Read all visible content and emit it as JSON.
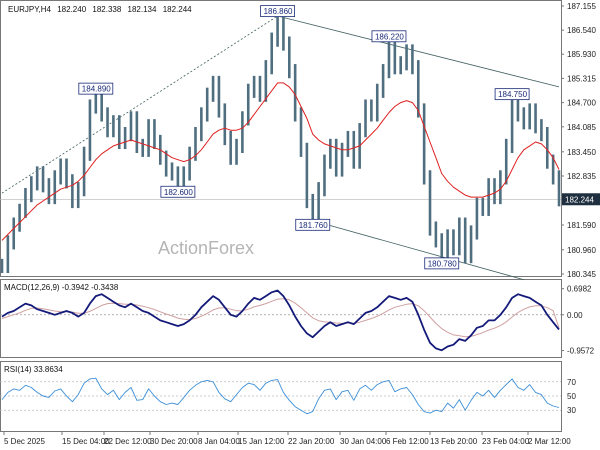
{
  "chart_data": {
    "type": "line",
    "header": {
      "symbol": "EURJPY,H4",
      "open": "182.240",
      "high": "182.338",
      "low": "182.134",
      "close": "182.244"
    },
    "watermark": "ActionForex",
    "x_labels": [
      "5 Dec 2025",
      "15 Dec 04:00",
      "22 Dec 12:00",
      "30 Dec 20:00",
      "8 Jan 04:00",
      "15 Jan 12:00",
      "22 Jan 20:00",
      "30 Jan 04:00",
      "6 Feb 12:00",
      "13 Feb 20:00",
      "23 Feb 04:00",
      "2 Mar 12:00"
    ],
    "price_panel": {
      "y_ticks": [
        "187.155",
        "186.540",
        "185.930",
        "185.315",
        "184.700",
        "184.085",
        "183.450",
        "182.835",
        "181.590",
        "180.960",
        "180.345"
      ],
      "last_price": "182.244",
      "ylim": [
        180.345,
        187.155
      ],
      "close_series": [
        180.55,
        181.15,
        181.6,
        181.95,
        182.35,
        182.65,
        182.9,
        182.6,
        182.3,
        182.8,
        183.1,
        182.7,
        182.2,
        182.5,
        183.4,
        184.6,
        184.89,
        184.4,
        184.0,
        184.2,
        183.7,
        183.9,
        184.3,
        183.6,
        183.5,
        184.1,
        183.7,
        183.3,
        183.0,
        182.9,
        182.6,
        182.9,
        183.4,
        183.9,
        184.4,
        184.9,
        185.2,
        184.5,
        183.8,
        183.3,
        183.6,
        184.3,
        185.0,
        185.2,
        184.9,
        185.6,
        186.3,
        186.86,
        186.2,
        185.5,
        184.4,
        183.5,
        182.2,
        181.76,
        182.5,
        183.2,
        183.6,
        183.0,
        183.5,
        183.8,
        183.2,
        184.0,
        184.6,
        184.4,
        185.0,
        185.5,
        186.22,
        185.6,
        185.7,
        186.0,
        185.6,
        184.5,
        182.8,
        181.5,
        181.2,
        180.78,
        181.3,
        181.0,
        181.6,
        180.8,
        181.4,
        182.1,
        182.0,
        182.6,
        182.3,
        182.8,
        183.6,
        184.75,
        184.4,
        184.2,
        184.5,
        184.1,
        183.9,
        183.2,
        182.8,
        182.244
      ],
      "ma_series": [
        181.2,
        181.35,
        181.5,
        181.65,
        181.8,
        181.95,
        182.1,
        182.2,
        182.3,
        182.4,
        182.5,
        182.55,
        182.6,
        182.7,
        182.85,
        183.05,
        183.25,
        183.4,
        183.5,
        183.6,
        183.65,
        183.7,
        183.75,
        183.7,
        183.65,
        183.6,
        183.55,
        183.5,
        183.4,
        183.3,
        183.25,
        183.2,
        183.25,
        183.35,
        183.5,
        183.7,
        183.9,
        184.0,
        184.05,
        184.0,
        184.0,
        184.05,
        184.2,
        184.4,
        184.6,
        184.8,
        185.0,
        185.2,
        185.2,
        185.1,
        184.9,
        184.6,
        184.3,
        183.9,
        183.75,
        183.65,
        183.6,
        183.55,
        183.5,
        183.5,
        183.55,
        183.6,
        183.75,
        183.9,
        184.05,
        184.25,
        184.45,
        184.6,
        184.7,
        184.75,
        184.7,
        184.5,
        184.1,
        183.7,
        183.3,
        182.9,
        182.7,
        182.55,
        182.45,
        182.35,
        182.3,
        182.3,
        182.3,
        182.35,
        182.4,
        182.5,
        182.7,
        183.0,
        183.3,
        183.5,
        183.6,
        183.7,
        183.65,
        183.5,
        183.3,
        183.0
      ],
      "labels": [
        {
          "text": "186.860",
          "price": 186.86,
          "idx": 47
        },
        {
          "text": "186.220",
          "price": 186.22,
          "idx": 66
        },
        {
          "text": "184.890",
          "price": 184.89,
          "idx": 16
        },
        {
          "text": "184.750",
          "price": 184.75,
          "idx": 87
        },
        {
          "text": "182.600",
          "price": 182.6,
          "idx": 30
        },
        {
          "text": "181.760",
          "price": 181.76,
          "idx": 53
        },
        {
          "text": "180.780",
          "price": 180.78,
          "idx": 75
        }
      ],
      "trendlines": [
        {
          "from": [
            0,
            182.4
          ],
          "to": [
            47,
            186.9
          ],
          "style": "dashed"
        },
        {
          "from": [
            47,
            186.9
          ],
          "to": [
            95,
            185.1
          ],
          "style": "solid"
        },
        {
          "from": [
            53,
            181.7
          ],
          "to": [
            89,
            180.2
          ],
          "style": "solid"
        }
      ]
    },
    "macd_panel": {
      "label": "MACD(12,26,9) -0.3942 -0.3438",
      "y_ticks": [
        "0.6982",
        "0.00",
        "-0.9572"
      ],
      "ylim": [
        -1.05,
        0.85
      ],
      "macd": [
        -0.05,
        0.05,
        0.1,
        0.2,
        0.3,
        0.25,
        0.15,
        0.1,
        0.05,
        0.0,
        0.05,
        0.1,
        0.05,
        -0.05,
        0.05,
        0.3,
        0.5,
        0.55,
        0.45,
        0.35,
        0.25,
        0.2,
        0.3,
        0.2,
        0.1,
        0.05,
        -0.05,
        -0.15,
        -0.2,
        -0.25,
        -0.3,
        -0.25,
        -0.15,
        0.0,
        0.2,
        0.35,
        0.5,
        0.4,
        0.2,
        0.0,
        -0.05,
        0.1,
        0.3,
        0.45,
        0.4,
        0.5,
        0.6,
        0.65,
        0.5,
        0.25,
        -0.05,
        -0.3,
        -0.5,
        -0.6,
        -0.45,
        -0.3,
        -0.2,
        -0.3,
        -0.25,
        -0.2,
        -0.25,
        -0.1,
        0.05,
        0.1,
        0.2,
        0.35,
        0.5,
        0.45,
        0.4,
        0.45,
        0.35,
        0.0,
        -0.4,
        -0.75,
        -0.9,
        -0.95,
        -0.85,
        -0.8,
        -0.65,
        -0.7,
        -0.55,
        -0.35,
        -0.3,
        -0.15,
        -0.15,
        0.0,
        0.2,
        0.45,
        0.55,
        0.5,
        0.45,
        0.35,
        0.25,
        0.0,
        -0.2,
        -0.3942
      ],
      "signal": [
        -0.1,
        -0.05,
        0.0,
        0.05,
        0.12,
        0.17,
        0.18,
        0.16,
        0.13,
        0.1,
        0.08,
        0.08,
        0.07,
        0.04,
        0.04,
        0.09,
        0.17,
        0.25,
        0.3,
        0.31,
        0.3,
        0.28,
        0.28,
        0.26,
        0.23,
        0.19,
        0.14,
        0.08,
        0.02,
        -0.03,
        -0.09,
        -0.12,
        -0.13,
        -0.1,
        -0.04,
        0.04,
        0.13,
        0.18,
        0.19,
        0.15,
        0.11,
        0.11,
        0.15,
        0.21,
        0.25,
        0.3,
        0.36,
        0.42,
        0.43,
        0.4,
        0.31,
        0.19,
        0.05,
        -0.08,
        -0.16,
        -0.19,
        -0.2,
        -0.22,
        -0.23,
        -0.22,
        -0.23,
        -0.2,
        -0.15,
        -0.1,
        -0.04,
        0.04,
        0.13,
        0.2,
        0.24,
        0.28,
        0.3,
        0.24,
        0.11,
        -0.06,
        -0.23,
        -0.37,
        -0.47,
        -0.54,
        -0.56,
        -0.59,
        -0.58,
        -0.53,
        -0.48,
        -0.41,
        -0.36,
        -0.29,
        -0.19,
        -0.06,
        0.06,
        0.15,
        0.21,
        0.24,
        0.24,
        0.19,
        0.11,
        -0.3438
      ]
    },
    "rsi_panel": {
      "label": "RSI(14) 33.8634",
      "y_ticks": [
        "70",
        "50",
        "30"
      ],
      "ylim": [
        5,
        95
      ],
      "rsi": [
        45,
        55,
        60,
        58,
        65,
        62,
        55,
        50,
        48,
        57,
        60,
        50,
        42,
        52,
        68,
        74,
        75,
        60,
        52,
        58,
        45,
        55,
        62,
        44,
        45,
        60,
        50,
        42,
        38,
        40,
        38,
        48,
        58,
        65,
        70,
        72,
        70,
        55,
        46,
        42,
        52,
        62,
        68,
        66,
        58,
        68,
        72,
        73,
        55,
        44,
        35,
        30,
        25,
        28,
        46,
        58,
        60,
        45,
        56,
        58,
        44,
        60,
        65,
        58,
        66,
        70,
        72,
        56,
        60,
        62,
        52,
        38,
        28,
        26,
        30,
        28,
        40,
        33,
        45,
        30,
        44,
        55,
        50,
        58,
        48,
        58,
        66,
        74,
        62,
        58,
        66,
        55,
        52,
        40,
        36,
        33.8634
      ]
    }
  },
  "colors": {
    "price": "#4f6f80",
    "ma": "#e02020",
    "macd": "#141a7a",
    "signal": "#d0a0a0",
    "rsi": "#3b8fd8",
    "trend": "#3f5f5f",
    "label_border": "#1a2a7a",
    "last_price_bg": "#1f2f3f"
  }
}
